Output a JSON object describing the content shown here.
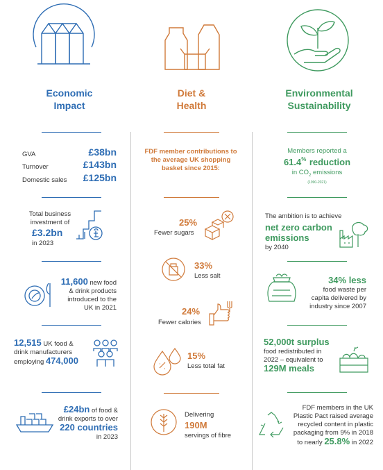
{
  "colors": {
    "economic": "#2e6db4",
    "diet": "#d07a3a",
    "environment": "#3f9a5f"
  },
  "headers": {
    "economic": {
      "line1": "Economic",
      "line2": "Impact",
      "icon": "grain-silo-icon"
    },
    "diet": {
      "line1": "Diet &",
      "line2": "Health",
      "icon": "food-packaging-icon"
    },
    "environment": {
      "line1": "Environmental",
      "line2": "Sustainability",
      "icon": "hand-plant-icon"
    }
  },
  "economic": {
    "gva": {
      "label": "GVA",
      "value": "£38bn"
    },
    "turnover": {
      "label": "Turnover",
      "value": "£143bn"
    },
    "domestic": {
      "label": "Domestic sales",
      "value": "£125bn"
    },
    "investment": {
      "pre": "Total business investment of",
      "value": "£3.2bn",
      "post": "in 2023",
      "icon": "investment-chart-icon"
    },
    "products": {
      "value": "11,600",
      "text1": "new food",
      "text2": "& drink products",
      "text3": "introduced to the",
      "text4": "UK in 2021",
      "icon": "plate-cutlery-icon"
    },
    "manufacturers": {
      "value1": "12,515",
      "text1": "UK food &",
      "text2": "drink manufacturers",
      "text3": "employing",
      "value2": "474,000",
      "icon": "people-group-icon"
    },
    "exports": {
      "value1": "£24bn",
      "text1": "of food &",
      "text2": "drink exports to over",
      "value2": "220 countries",
      "text3": "in 2023",
      "icon": "cargo-ship-icon"
    }
  },
  "diet": {
    "intro": "FDF member contributions to the average UK shopping basket since 2015:",
    "sugar": {
      "value": "25%",
      "label": "Fewer sugars",
      "icon": "sugar-cubes-icon"
    },
    "salt": {
      "value": "33%",
      "label": "Less salt",
      "icon": "no-salt-icon"
    },
    "calories": {
      "value": "24%",
      "label": "Fewer calories",
      "icon": "thumbs-up-fork-icon"
    },
    "fat": {
      "value": "15%",
      "label": "Less total fat",
      "icon": "fat-drops-icon"
    },
    "fibre": {
      "pre": "Delivering",
      "value": "190M",
      "post": "servings of fibre",
      "icon": "wheat-icon"
    }
  },
  "environment": {
    "emissions": {
      "pre": "Members reported a",
      "value": "61.4",
      "sup": "%",
      "word": "reduction",
      "text": "in CO",
      "sub": "2",
      "text2": "emissions",
      "years": "(1990-2021)"
    },
    "netzero": {
      "pre": "The ambition is to achieve",
      "value": "net zero carbon emissions",
      "post": "by 2040",
      "icon": "factory-tree-icon"
    },
    "waste": {
      "value": "34% less",
      "text1": "food waste per",
      "text2": "capita delivered by",
      "text3": "industry since 2007",
      "icon": "food-sack-icon"
    },
    "surplus": {
      "value": "52,000t surplus",
      "text1": "food redistributed in",
      "text2": "2022 – equivalent to",
      "value2": "129M meals",
      "icon": "vegetable-crate-icon"
    },
    "plastic": {
      "text1": "FDF members in the UK",
      "text2": "Plastic Pact raised average",
      "text3": "recycled content in plastic",
      "text4": "packaging from 9% in 2018",
      "text5": "to nearly",
      "value": "25.8%",
      "text6": "in 2022",
      "icon": "recycle-icon"
    }
  }
}
